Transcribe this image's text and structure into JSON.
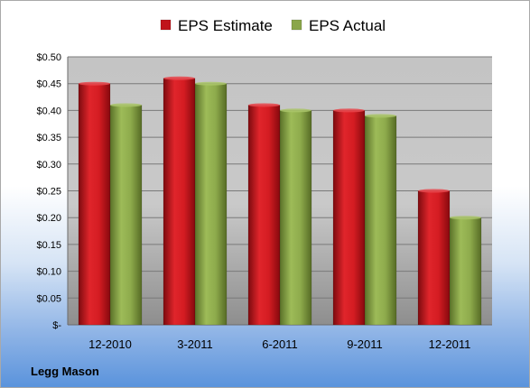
{
  "chart_data": {
    "type": "bar",
    "title": "",
    "xlabel": "",
    "ylabel": "",
    "categories": [
      "12-2010",
      "3-2011",
      "6-2011",
      "9-2011",
      "12-2011"
    ],
    "series": [
      {
        "name": "EPS Estimate",
        "values": [
          0.45,
          0.46,
          0.41,
          0.4,
          0.25
        ],
        "color": "#c0141b"
      },
      {
        "name": "EPS Actual",
        "values": [
          0.41,
          0.45,
          0.4,
          0.39,
          0.2
        ],
        "color": "#8aa64a"
      }
    ],
    "ylim": [
      0,
      0.5
    ],
    "yticks": [
      {
        "value": 0.5,
        "label": "$0.50"
      },
      {
        "value": 0.45,
        "label": "$0.45"
      },
      {
        "value": 0.4,
        "label": "$0.40"
      },
      {
        "value": 0.35,
        "label": "$0.35"
      },
      {
        "value": 0.3,
        "label": "$0.30"
      },
      {
        "value": 0.25,
        "label": "$0.25"
      },
      {
        "value": 0.2,
        "label": "$0.20"
      },
      {
        "value": 0.15,
        "label": "$0.15"
      },
      {
        "value": 0.1,
        "label": "$0.10"
      },
      {
        "value": 0.05,
        "label": "$0.05"
      },
      {
        "value": 0,
        "label": "$-"
      }
    ],
    "grid": true,
    "legend_position": "top"
  },
  "footer": {
    "company": "Legg Mason"
  }
}
